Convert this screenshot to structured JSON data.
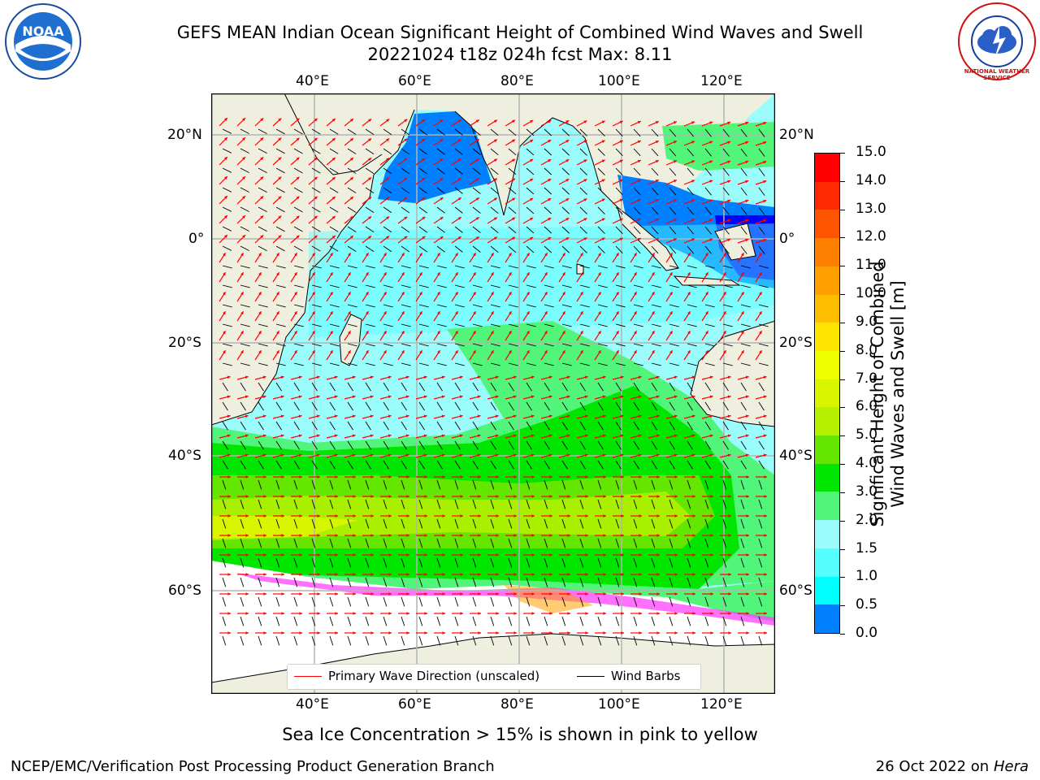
{
  "header": {
    "title_line1": "GEFS MEAN Indian Ocean Significant Height of Combined Wind Waves and Swell",
    "title_line2": "20221024 t18z 024h fcst   Max: 8.11"
  },
  "logos": {
    "left": {
      "icon": "noaa-logo-icon",
      "text": "NOAA"
    },
    "right": {
      "icon": "nws-logo-icon",
      "text": "NATIONAL WEATHER SERVICE"
    }
  },
  "map": {
    "lon_ticks_top": [
      "40°E",
      "60°E",
      "80°E",
      "100°E",
      "120°E"
    ],
    "lon_ticks_bottom": [
      "40°E",
      "60°E",
      "80°E",
      "100°E",
      "120°E"
    ],
    "lat_ticks_left": [
      "20°N",
      "0°",
      "20°S",
      "40°S",
      "60°S"
    ],
    "lat_ticks_right": [
      "20°N",
      "0°",
      "20°S",
      "40°S",
      "60°S"
    ],
    "land_color": "#efefe0",
    "grid": true
  },
  "legend": {
    "primary_wave": "Primary Wave Direction (unscaled)",
    "wind_barbs": "Wind Barbs",
    "wave_color": "#ff0000",
    "barb_color": "#000000"
  },
  "colorbar": {
    "label_line1": "Significant Height of Combined",
    "label_line2": "Wind Waves and Swell [m]",
    "ticks": [
      "15.0",
      "14.0",
      "13.0",
      "12.0",
      "11.0",
      "10.0",
      "9.0",
      "8.0",
      "7.0",
      "6.0",
      "5.0",
      "4.0",
      "3.0",
      "2.0",
      "1.5",
      "1.0",
      "0.5",
      "0.0"
    ],
    "colors": [
      "#ff0000",
      "#ff2a00",
      "#ff5500",
      "#ff7f00",
      "#ffa000",
      "#ffbf00",
      "#ffe600",
      "#f0ff00",
      "#d8f500",
      "#b4f000",
      "#64e600",
      "#00e600",
      "#50f57a",
      "#9bfcfc",
      "#55ffff",
      "#00ffff",
      "#0080ff",
      "#0000ff"
    ]
  },
  "footer": {
    "ice_note": "Sea Ice Concentration > 15% is shown in pink to yellow",
    "branch": "NCEP/EMC/Verification Post Processing Product Generation Branch",
    "date": "26 Oct 2022 on ",
    "host": "Hera"
  }
}
